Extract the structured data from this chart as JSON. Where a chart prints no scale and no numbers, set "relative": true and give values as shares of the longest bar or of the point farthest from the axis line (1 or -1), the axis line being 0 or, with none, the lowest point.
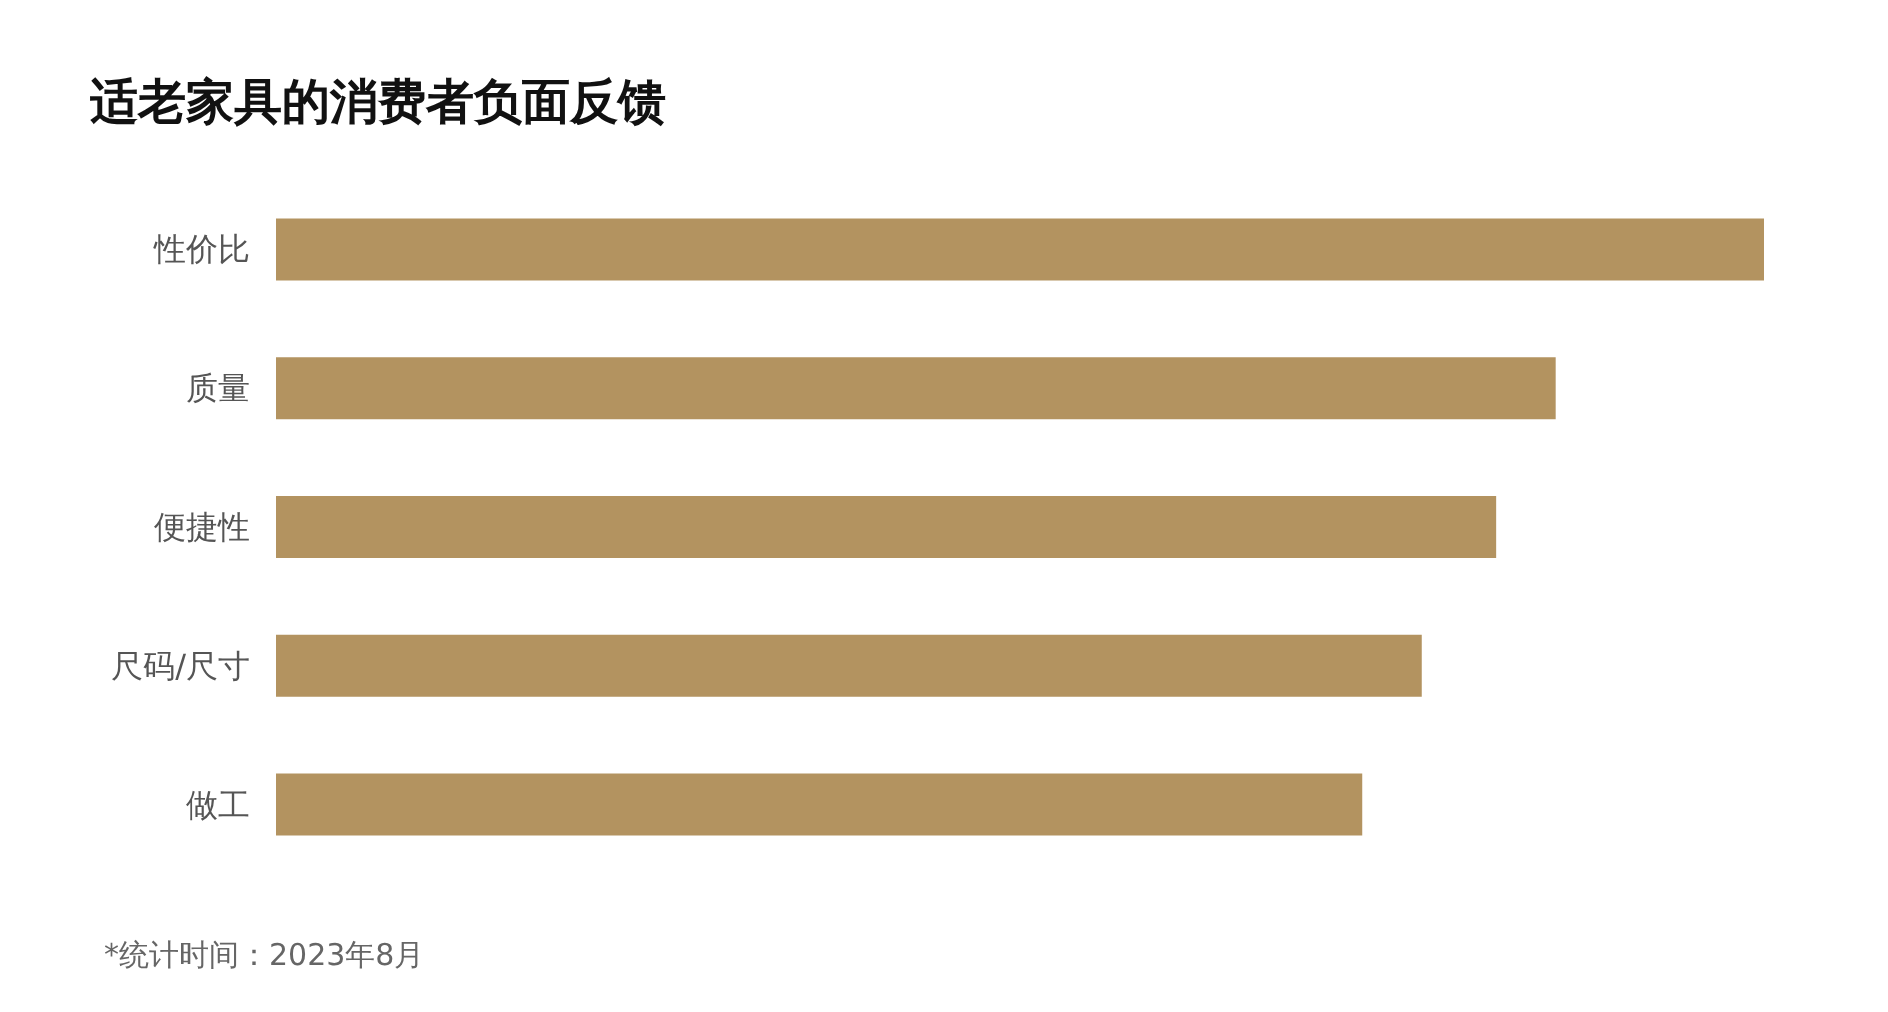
{
  "chart_data": {
    "type": "bar",
    "orientation": "horizontal",
    "relative": true,
    "title": "适老家具的消费者负面反馈",
    "annotations": [
      "*统计时间：2023年8月"
    ],
    "categories": [
      "性价比",
      "质量",
      "便捷性",
      "尺码/尺寸",
      "做工"
    ],
    "values": [
      1,
      0.86,
      0.82,
      0.77,
      0.73
    ],
    "color": "#b39360"
  }
}
